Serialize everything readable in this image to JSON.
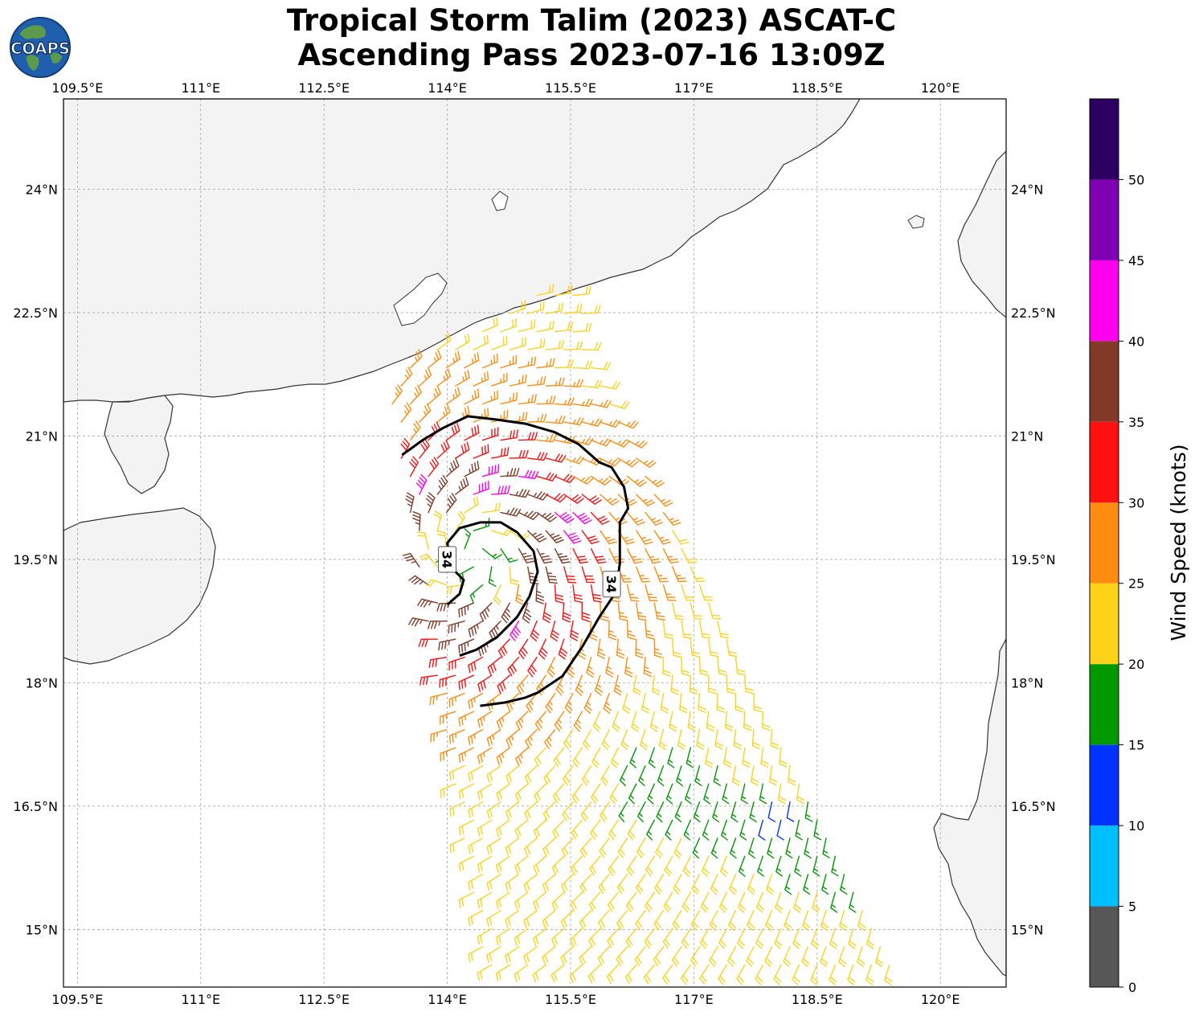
{
  "title": {
    "line1": "Tropical Storm Talim (2023) ASCAT-C",
    "line2": "Ascending Pass 2023-07-16 13:09Z"
  },
  "logo": {
    "text": "COAPS",
    "colors": {
      "ocean": "#1f5fae",
      "land": "#5c9a4c",
      "ring": "#103a78"
    }
  },
  "map": {
    "lon_range": [
      109.33,
      120.8
    ],
    "lat_range": [
      14.3,
      25.1
    ],
    "lon_ticks": [
      109.5,
      111.0,
      112.5,
      114.0,
      115.5,
      117.0,
      118.5,
      120.0
    ],
    "lat_ticks": [
      15.0,
      16.5,
      18.0,
      19.5,
      21.0,
      22.5,
      24.0
    ],
    "lon_tick_labels": [
      "109.5°E",
      "111°E",
      "112.5°E",
      "114°E",
      "115.5°E",
      "117°E",
      "118.5°E",
      "120°E"
    ],
    "lat_tick_labels": [
      "15°N",
      "16.5°N",
      "18°N",
      "19.5°N",
      "21°N",
      "22.5°N",
      "24°N"
    ],
    "gridlines": true,
    "land_color": "#f3f3f3",
    "ocean_color": "#ffffff"
  },
  "storm": {
    "center_lon": 114.3,
    "center_lat": 19.55,
    "contour_label": "34",
    "contour_labels": [
      {
        "text": "34",
        "lon": 114.0,
        "lat": 19.5,
        "rotation": 90
      },
      {
        "text": "34",
        "lon": 116.0,
        "lat": 19.2,
        "rotation": 90
      }
    ],
    "contour_34kt": [
      [
        113.45,
        20.77
      ],
      [
        113.7,
        20.95
      ],
      [
        113.95,
        21.1
      ],
      [
        114.25,
        21.24
      ],
      [
        114.6,
        21.2
      ],
      [
        114.95,
        21.15
      ],
      [
        115.3,
        21.05
      ],
      [
        115.6,
        20.9
      ],
      [
        115.85,
        20.68
      ],
      [
        116.0,
        20.62
      ],
      [
        116.15,
        20.38
      ],
      [
        116.2,
        20.12
      ],
      [
        116.1,
        19.95
      ],
      [
        116.1,
        19.7
      ],
      [
        116.1,
        19.45
      ],
      [
        116.05,
        19.1
      ],
      [
        115.85,
        18.8
      ],
      [
        115.65,
        18.45
      ],
      [
        115.4,
        18.08
      ],
      [
        115.1,
        17.88
      ],
      [
        114.95,
        17.82
      ],
      [
        114.7,
        17.76
      ],
      [
        114.4,
        17.72
      ]
    ],
    "contour_inner": [
      [
        114.0,
        18.95
      ],
      [
        114.15,
        19.08
      ],
      [
        114.2,
        19.25
      ],
      [
        114.05,
        19.4
      ],
      [
        114.0,
        19.7
      ],
      [
        114.15,
        19.88
      ],
      [
        114.4,
        19.95
      ],
      [
        114.65,
        19.95
      ],
      [
        114.85,
        19.83
      ],
      [
        115.05,
        19.6
      ],
      [
        115.1,
        19.35
      ],
      [
        115.0,
        19.05
      ],
      [
        114.85,
        18.8
      ],
      [
        114.6,
        18.55
      ],
      [
        114.35,
        18.4
      ],
      [
        114.15,
        18.33
      ]
    ],
    "high_wind_cells": [
      [
        113.7,
        20.2
      ],
      [
        114.4,
        20.4
      ],
      [
        114.55,
        20.25
      ],
      [
        114.85,
        20.42
      ],
      [
        115.4,
        20.12
      ],
      [
        115.5,
        19.88
      ],
      [
        114.95,
        18.73
      ]
    ],
    "low_wind_cells": [
      [
        114.75,
        19.55
      ],
      [
        114.85,
        19.3
      ],
      [
        114.45,
        19.3
      ],
      [
        114.55,
        19.6
      ],
      [
        114.3,
        19.8
      ],
      [
        114.4,
        19.15
      ]
    ]
  },
  "swath": {
    "corners": [
      [
        113.25,
        21.75
      ],
      [
        115.45,
        22.9
      ],
      [
        119.4,
        14.55
      ],
      [
        114.5,
        14.35
      ]
    ],
    "spacing_deg": 0.22
  },
  "colorbar": {
    "label": "Wind Speed (knots)",
    "ticks": [
      "0",
      "5",
      "10",
      "15",
      "20",
      "25",
      "30",
      "35",
      "40",
      "45",
      "50"
    ],
    "max": 55,
    "bands": [
      {
        "from": 0,
        "to": 5,
        "color": "#575757"
      },
      {
        "from": 5,
        "to": 10,
        "color": "#00bfff"
      },
      {
        "from": 10,
        "to": 15,
        "color": "#0033ff"
      },
      {
        "from": 15,
        "to": 20,
        "color": "#009900"
      },
      {
        "from": 20,
        "to": 25,
        "color": "#ffd21a"
      },
      {
        "from": 25,
        "to": 30,
        "color": "#ff8c10"
      },
      {
        "from": 30,
        "to": 35,
        "color": "#ff1010"
      },
      {
        "from": 35,
        "to": 40,
        "color": "#823a26"
      },
      {
        "from": 40,
        "to": 45,
        "color": "#ff00ee"
      },
      {
        "from": 45,
        "to": 50,
        "color": "#8000b4"
      },
      {
        "from": 50,
        "to": 55,
        "color": "#2c0060"
      }
    ]
  }
}
